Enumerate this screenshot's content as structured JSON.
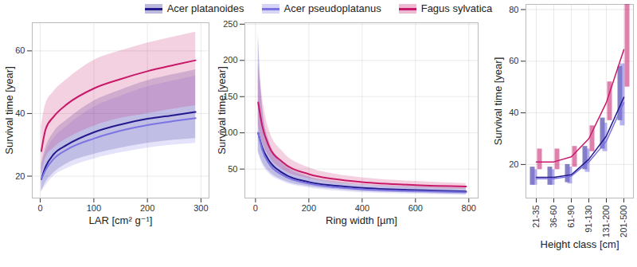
{
  "chart_data": [
    {
      "type": "line",
      "legend": "top",
      "grid": true,
      "x_label": "LAR [cm² g⁻¹]",
      "y_label": "Survival time [year]",
      "x": [
        2,
        10,
        25,
        50,
        100,
        150,
        200,
        250,
        290
      ],
      "xlim": [
        -15,
        315
      ],
      "xticks": [
        0,
        100,
        200,
        300
      ],
      "ylim": [
        13,
        69
      ],
      "yticks": [
        20,
        40,
        60
      ],
      "series": [
        {
          "name": "Acer platanoides",
          "color": "#22198c",
          "values": [
            19,
            23,
            27,
            30,
            34,
            36.5,
            38.3,
            39.5,
            40.5
          ],
          "lower": [
            15,
            18,
            21,
            24,
            27,
            29,
            30.5,
            31.5,
            32
          ],
          "upper": [
            24,
            29,
            34,
            38,
            44,
            47.5,
            50.5,
            52.5,
            54
          ]
        },
        {
          "name": "Acer pseudoplatanus",
          "color": "#7c74e2",
          "values": [
            19,
            22,
            25.5,
            28.5,
            32,
            34.5,
            36.3,
            37.6,
            38.5
          ],
          "lower": [
            15,
            17,
            20,
            22.5,
            25.5,
            27.5,
            29,
            30,
            30.5
          ],
          "upper": [
            23,
            27.5,
            32,
            36,
            42,
            45.5,
            48.5,
            50.5,
            52
          ]
        },
        {
          "name": "Fagus sylvatica",
          "color": "#c8186a",
          "values": [
            28,
            35,
            39,
            43,
            48,
            51,
            53.5,
            55.5,
            57
          ],
          "lower": [
            20,
            26,
            29,
            32,
            36,
            38.5,
            40,
            41.5,
            42.5
          ],
          "upper": [
            36,
            43,
            47,
            51,
            57,
            60,
            62.5,
            64.5,
            66
          ]
        }
      ]
    },
    {
      "type": "line",
      "grid": true,
      "x_label": "Ring width [µm]",
      "y_label": "Survival time [year]",
      "x": [
        10,
        25,
        50,
        100,
        200,
        300,
        400,
        600,
        790
      ],
      "xlim": [
        -40,
        835
      ],
      "xticks": [
        0,
        200,
        400,
        600,
        800
      ],
      "ylim": [
        10,
        252
      ],
      "yticks": [
        50,
        100,
        150,
        200,
        250
      ],
      "series": [
        {
          "name": "Acer platanoides",
          "color": "#22198c",
          "values": [
            100,
            80,
            62,
            45,
            32,
            27,
            24,
            21,
            19
          ],
          "lower": [
            75,
            60,
            47,
            35,
            26,
            22,
            19,
            17,
            15
          ],
          "upper": [
            240,
            140,
            90,
            60,
            40,
            33,
            29,
            26,
            24
          ]
        },
        {
          "name": "Acer pseudoplatanus",
          "color": "#7c74e2",
          "values": [
            100,
            77,
            58,
            42,
            30,
            25,
            22,
            19.5,
            18
          ],
          "lower": [
            72,
            57,
            44,
            33,
            24,
            20,
            17.5,
            15.5,
            14
          ],
          "upper": [
            230,
            135,
            86,
            57,
            38,
            31,
            27,
            24,
            22
          ]
        },
        {
          "name": "Fagus sylvatica",
          "color": "#c8186a",
          "values": [
            142,
            110,
            82,
            60,
            43,
            36,
            32,
            28,
            26
          ],
          "lower": [
            110,
            88,
            68,
            50,
            37,
            31,
            28,
            24,
            22
          ],
          "upper": [
            195,
            150,
            105,
            75,
            52,
            43,
            38,
            33,
            30
          ]
        }
      ]
    },
    {
      "type": "line",
      "marker": "box",
      "grid": true,
      "x_label": "Height class [cm]",
      "y_label": "Survival time [year]",
      "categories": [
        "21-35",
        "36-60",
        "61-90",
        "91-130",
        "131-200",
        "201-500"
      ],
      "ylim": [
        7,
        82
      ],
      "yticks": [
        20,
        40,
        60,
        80
      ],
      "series": [
        {
          "name": "Acer platanoides",
          "color": "#22198c",
          "values": [
            15,
            15,
            16,
            22,
            31,
            46
          ],
          "lower": [
            12,
            12,
            13,
            18,
            26,
            37
          ],
          "upper": [
            19,
            19,
            20,
            27,
            38,
            58
          ]
        },
        {
          "name": "Acer pseudoplatanus",
          "color": "#7c74e2",
          "values": [
            14.5,
            14.5,
            15.5,
            21,
            29,
            44
          ],
          "lower": [
            12,
            12,
            12.5,
            17,
            25,
            35
          ],
          "upper": [
            18,
            18,
            19,
            26,
            36,
            59
          ]
        },
        {
          "name": "Fagus sylvatica",
          "color": "#c8186a",
          "values": [
            21,
            21,
            23,
            30,
            44,
            64.5
          ],
          "lower": [
            18,
            18,
            19,
            25,
            37,
            50
          ],
          "upper": [
            26,
            26,
            27,
            35,
            52,
            83
          ]
        }
      ]
    }
  ]
}
